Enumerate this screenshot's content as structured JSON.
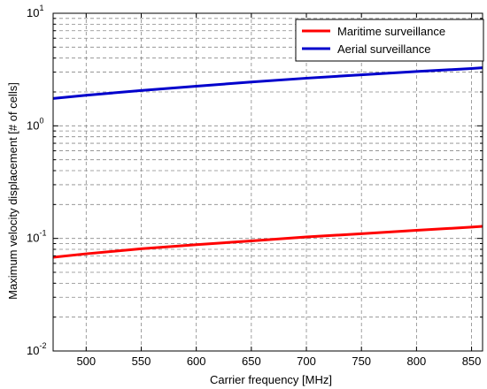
{
  "chart_data": {
    "type": "line",
    "title": "",
    "xlabel": "Carrier frequency [MHz]",
    "ylabel": "Maximum velocity displacement [# of cells]",
    "xlim": [
      470,
      860
    ],
    "ylim": [
      0.01,
      10
    ],
    "yscale": "log",
    "grid": true,
    "legend_position": "top-right",
    "x_ticks": [
      500,
      550,
      600,
      650,
      700,
      750,
      800,
      850
    ],
    "y_ticks": [
      {
        "base": "10",
        "exp": "-2",
        "value": 0.01
      },
      {
        "base": "10",
        "exp": "-1",
        "value": 0.1
      },
      {
        "base": "10",
        "exp": "0",
        "value": 1
      },
      {
        "base": "10",
        "exp": "1",
        "value": 10
      }
    ],
    "x": [
      470,
      500,
      550,
      600,
      650,
      700,
      750,
      800,
      850,
      860
    ],
    "series": [
      {
        "name": "Maritime surveillance",
        "color": "#ff0000",
        "values": [
          0.068,
          0.073,
          0.081,
          0.088,
          0.095,
          0.103,
          0.11,
          0.118,
          0.126,
          0.128
        ]
      },
      {
        "name": "Aerial surveillance",
        "color": "#0000cc",
        "values": [
          1.75,
          1.87,
          2.06,
          2.25,
          2.45,
          2.65,
          2.84,
          3.04,
          3.23,
          3.28
        ]
      }
    ]
  }
}
